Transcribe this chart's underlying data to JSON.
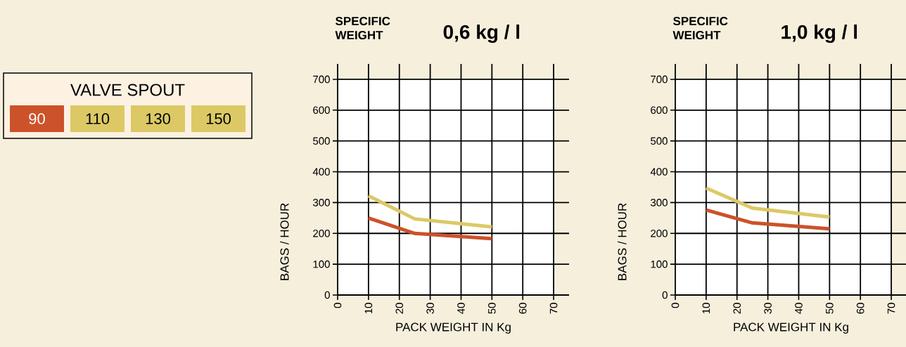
{
  "chart_data": [
    {
      "type": "line",
      "title": "SPECIFIC WEIGHT",
      "subtitle": "0,6 kg / l",
      "xlabel": "PACK WEIGHT IN Kg",
      "ylabel": "BAGS / HOUR",
      "legend_title": "VALVE SPOUT",
      "legend": "left",
      "annotations": [
        "110",
        "130",
        "150"
      ],
      "x": [
        10,
        25,
        50
      ],
      "series": [
        {
          "name": "90",
          "color": "#cc5229",
          "values": [
            250,
            200,
            183
          ]
        },
        {
          "color": "#dcc965",
          "values": [
            322,
            247,
            221
          ]
        }
      ],
      "xlim": [
        0,
        75
      ],
      "ylim": [
        0,
        750
      ],
      "xticks": [
        0,
        10,
        20,
        30,
        40,
        50,
        60,
        70
      ],
      "yticks": [
        0,
        100,
        200,
        300,
        400,
        500,
        600,
        700
      ],
      "grid": true
    },
    {
      "type": "line",
      "title": "SPECIFIC WEIGHT",
      "subtitle": "1,0 kg / l",
      "xlabel": "PACK WEIGHT IN Kg",
      "ylabel": "BAGS / HOUR",
      "x": [
        10,
        25,
        50
      ],
      "series": [
        {
          "color": "#cc5229",
          "values": [
            276,
            234,
            215
          ]
        },
        {
          "color": "#dcc965",
          "values": [
            347,
            282,
            253
          ]
        }
      ],
      "xlim": [
        0,
        75
      ],
      "ylim": [
        0,
        750
      ],
      "xticks": [
        0,
        10,
        20,
        30,
        40,
        50,
        60,
        70
      ],
      "yticks": [
        0,
        100,
        200,
        300,
        400,
        500,
        600,
        700
      ],
      "grid": true
    }
  ]
}
